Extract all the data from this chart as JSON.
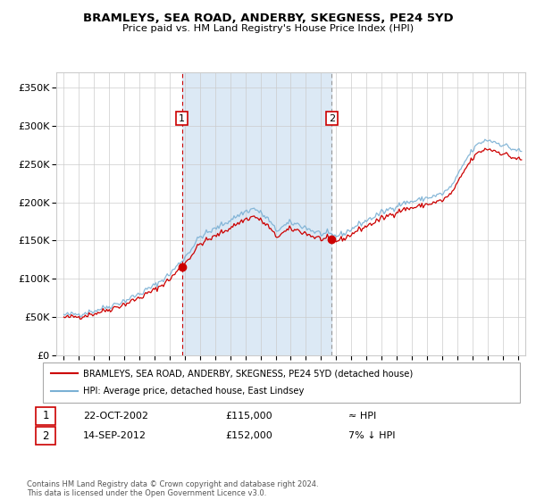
{
  "title": "BRAMLEYS, SEA ROAD, ANDERBY, SKEGNESS, PE24 5YD",
  "subtitle": "Price paid vs. HM Land Registry's House Price Index (HPI)",
  "ylim": [
    0,
    370000
  ],
  "yticks": [
    0,
    50000,
    100000,
    150000,
    200000,
    250000,
    300000,
    350000
  ],
  "ytick_labels": [
    "£0",
    "£50K",
    "£100K",
    "£150K",
    "£200K",
    "£250K",
    "£300K",
    "£350K"
  ],
  "xlim_start": 1994.5,
  "xlim_end": 2025.5,
  "xticks": [
    1995,
    1996,
    1997,
    1998,
    1999,
    2000,
    2001,
    2002,
    2003,
    2004,
    2005,
    2006,
    2007,
    2008,
    2009,
    2010,
    2011,
    2012,
    2013,
    2014,
    2015,
    2016,
    2017,
    2018,
    2019,
    2020,
    2021,
    2022,
    2023,
    2024,
    2025
  ],
  "background_color": "#ffffff",
  "plot_bg_color": "#ffffff",
  "grid_color": "#cccccc",
  "sale1_date_num": 2002.81,
  "sale1_price": 115000,
  "sale2_date_num": 2012.71,
  "sale2_price": 152000,
  "shade_color": "#dce9f5",
  "vline1_color": "#cc0000",
  "vline2_color": "#999999",
  "red_line_color": "#cc0000",
  "blue_line_color": "#7ab0d4",
  "numbered_box_color": "#cc0000",
  "legend_line1": "BRAMLEYS, SEA ROAD, ANDERBY, SKEGNESS, PE24 5YD (detached house)",
  "legend_line2": "HPI: Average price, detached house, East Lindsey",
  "sale_table": [
    {
      "num": "1",
      "date": "22-OCT-2002",
      "price": "£115,000",
      "note": "≈ HPI"
    },
    {
      "num": "2",
      "date": "14-SEP-2012",
      "price": "£152,000",
      "note": "7% ↓ HPI"
    }
  ],
  "footer": "Contains HM Land Registry data © Crown copyright and database right 2024.\nThis data is licensed under the Open Government Licence v3.0."
}
